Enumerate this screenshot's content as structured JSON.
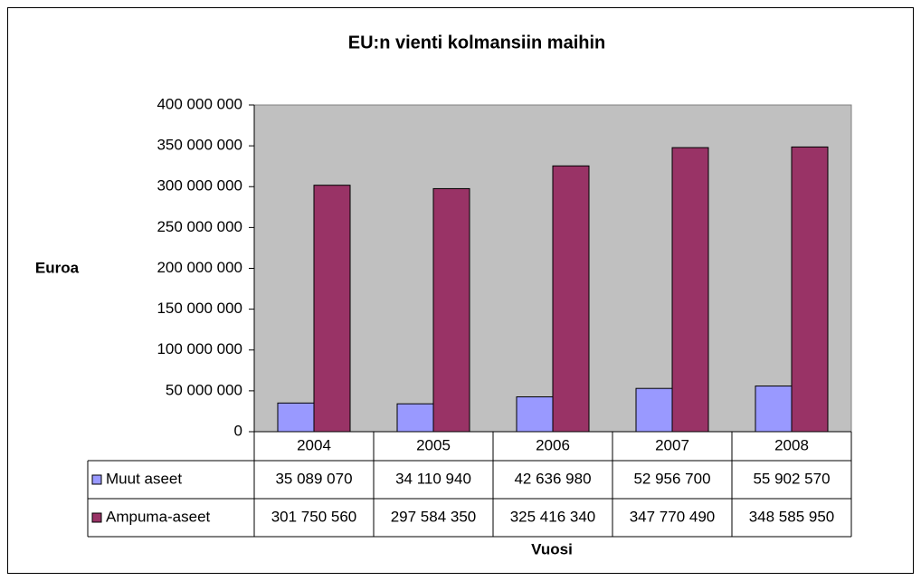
{
  "chart_data": {
    "type": "bar",
    "title": "EU:n vienti kolmansiin maihin",
    "y_label": "Euroa",
    "x_label": "Vuosi",
    "categories": [
      "2004",
      "2005",
      "2006",
      "2007",
      "2008"
    ],
    "series": [
      {
        "name": "Muut aseet",
        "color": "#9999ff",
        "values": [
          35089070,
          34110940,
          42636980,
          52956700,
          55902570
        ],
        "value_labels": [
          "35 089 070",
          "34 110 940",
          "42 636 980",
          "52 956 700",
          "55 902 570"
        ]
      },
      {
        "name": "Ampuma-aseet",
        "color": "#993366",
        "values": [
          301750560,
          297584350,
          325416340,
          347770490,
          348585950
        ],
        "value_labels": [
          "301 750 560",
          "297 584 350",
          "325 416 340",
          "347 770 490",
          "348 585 950"
        ]
      }
    ],
    "ylim": [
      0,
      400000000
    ],
    "yticks": [
      0,
      {
        "value": 50000000,
        "label": "50 000 000"
      },
      {
        "value": 100000000,
        "label": "100 000 000"
      },
      {
        "value": 150000000,
        "label": "150 000 000"
      },
      {
        "value": 200000000,
        "label": "200 000 000"
      },
      {
        "value": 250000000,
        "label": "250 000 000"
      },
      {
        "value": 300000000,
        "label": "300 000 000"
      },
      {
        "value": 350000000,
        "label": "350 000 000"
      },
      {
        "value": 400000000,
        "label": "400 000 000"
      }
    ],
    "grid": false,
    "plot_background": "#c0c0c0"
  }
}
